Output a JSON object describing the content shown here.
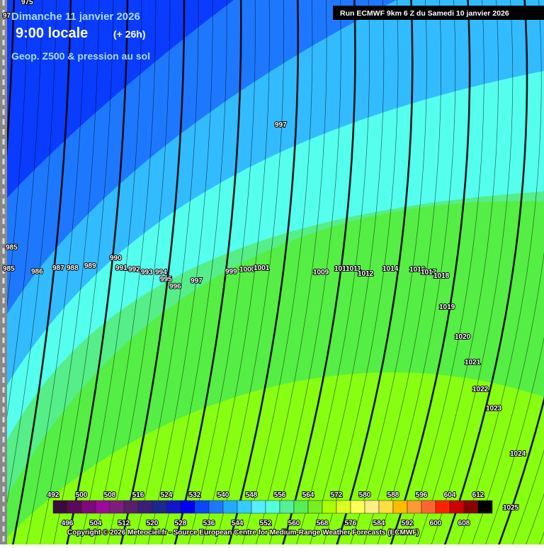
{
  "header": {
    "date": "Dimanche 11 janvier 2026",
    "time": "9:00 locale",
    "lead": "(+ 26h)",
    "product": "Geop. Z500 & pression au sol",
    "run": "Run ECMWF 9km 6 Z du Samedi 10 janvier 2026"
  },
  "isobar_labels": [
    975,
    97,
    985,
    985,
    986,
    987,
    988,
    989,
    990,
    991,
    992,
    993,
    994,
    995,
    996,
    997,
    999,
    1000,
    1001,
    1009,
    1010,
    1011,
    1012,
    1014,
    1016,
    1017,
    1018,
    1019,
    1020,
    1021,
    1022,
    1023,
    1024,
    1025,
    997
  ],
  "scale": {
    "top_labels": [
      492,
      500,
      508,
      516,
      524,
      532,
      540,
      548,
      556,
      564,
      572,
      580,
      588,
      596,
      604,
      612
    ],
    "bottom_labels": [
      496,
      504,
      512,
      520,
      528,
      536,
      544,
      552,
      560,
      568,
      576,
      584,
      592,
      600,
      608
    ],
    "colors": [
      "#3c0a3c",
      "#5a0a5a",
      "#7d0a7d",
      "#9b0a9b",
      "#7d1e7d",
      "#5a1e6e",
      "#3c1e78",
      "#1e288c",
      "#1414c8",
      "#0000f0",
      "#0a46ff",
      "#1e78ff",
      "#22aaff",
      "#33ccff",
      "#55eeff",
      "#55ffdd",
      "#55ee99",
      "#55ee55",
      "#77ee22",
      "#aaff00",
      "#ddff22",
      "#ffff55",
      "#ffee88",
      "#ffdd44",
      "#ffbb00",
      "#ff9933",
      "#ff6633",
      "#ff2200",
      "#cc0000",
      "#880000",
      "#000000"
    ]
  },
  "copyright": "Copyright © 2026 Meteociel.fr - Source European Centre for Medium-Range Weather Forecasts (ECMWF)"
}
